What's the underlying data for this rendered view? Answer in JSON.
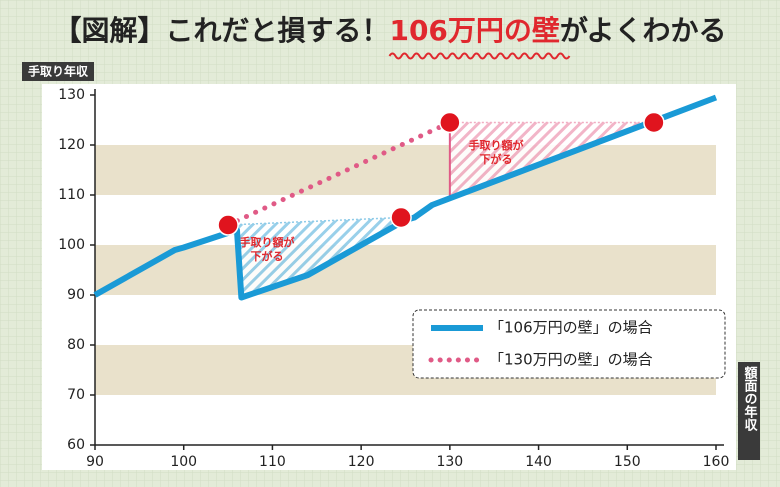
{
  "chart_data": {
    "type": "line",
    "title_parts": [
      {
        "text": "【図解】これだと損する！"
      },
      {
        "text": "106万円の壁",
        "color": "#e0282e"
      },
      {
        "text": "がよくわかる"
      }
    ],
    "y_label": "手取り年収",
    "x_label": "額面の年収",
    "xlim": [
      90,
      160
    ],
    "xticks": [
      90,
      100,
      110,
      120,
      130,
      140,
      150,
      160
    ],
    "ylim": [
      60,
      130
    ],
    "yticks": [
      60,
      70,
      80,
      90,
      100,
      110,
      120,
      130
    ],
    "series": [
      {
        "name": "「106万円の壁」の場合",
        "color": "#1a9ad6",
        "style": "solid",
        "x": [
          90,
          99,
          100,
          106,
          106.5,
          114,
          125,
          126,
          128,
          160
        ],
        "values": [
          90,
          99,
          99.5,
          103,
          89.5,
          94,
          105,
          105.5,
          108,
          129.5
        ]
      },
      {
        "name": "「130万円の壁」の場合",
        "color": "#e05a86",
        "style": "dotted",
        "x": [
          105,
          130
        ],
        "values": [
          104,
          124.5
        ]
      }
    ],
    "highlight_points": {
      "color": "#e0141e",
      "x": [
        105,
        124.5,
        130,
        153
      ],
      "values": [
        104,
        105.5,
        124.5,
        124.5
      ]
    },
    "annotations": [
      {
        "lines": [
          "手取り額が",
          "下がる"
        ],
        "color": "#e0282e"
      },
      {
        "lines": [
          "手取り額が",
          "下がる"
        ],
        "color": "#e0282e"
      }
    ],
    "legend": "bottom right"
  }
}
